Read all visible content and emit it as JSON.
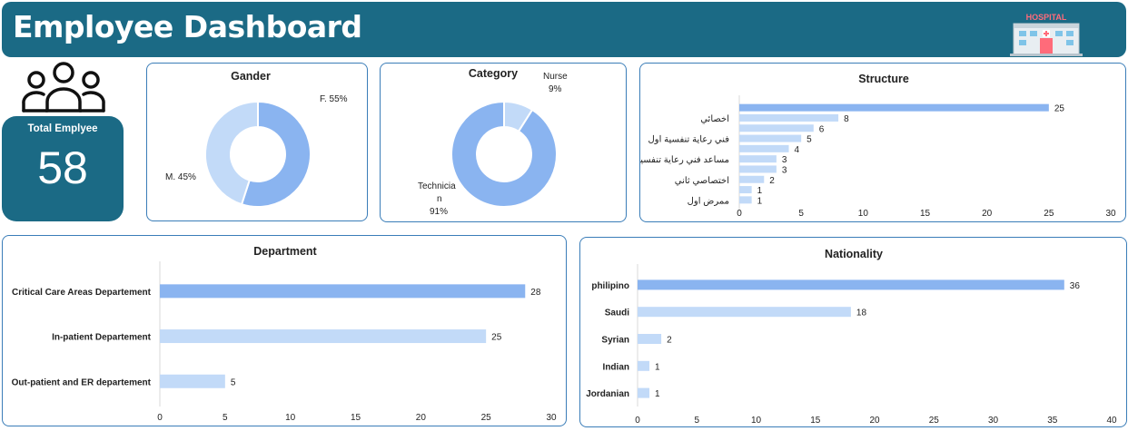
{
  "header": {
    "title": "Employee Dashboard",
    "logo_text": "HOSPITAL"
  },
  "summary": {
    "label": "Total Emplyee",
    "value": "58"
  },
  "colors": {
    "banner": "#1b6a85",
    "primary_bar": "#8ab4f0",
    "light_bar": "#c2daf8",
    "panel_border": "#3a7db8"
  },
  "chart_data": [
    {
      "type": "pie",
      "title": "Gander",
      "categories": [
        "F.",
        "M."
      ],
      "values": [
        55,
        45
      ],
      "labels": [
        "F. 55%",
        "M. 45%"
      ]
    },
    {
      "type": "pie",
      "title": "Category",
      "categories": [
        "Nurse",
        "Technician"
      ],
      "values": [
        9,
        91
      ],
      "labels": [
        [
          "Nurse",
          "9%"
        ],
        [
          "Technicia",
          "n",
          "91%"
        ]
      ]
    },
    {
      "type": "bar",
      "title": "Structure",
      "categories": [
        "",
        "اخصائي",
        "",
        "فني رعاية تنفسية اول",
        "",
        "مساعد فني رعاية تنفسية",
        "",
        "اختصاصي ثاني",
        "",
        "ممرض اول"
      ],
      "values": [
        25,
        8,
        6,
        5,
        4,
        3,
        3,
        2,
        1,
        1
      ],
      "xlim": [
        0,
        30
      ],
      "xticks": [
        0,
        5,
        10,
        15,
        20,
        25,
        30
      ]
    },
    {
      "type": "bar",
      "title": "Department",
      "categories": [
        "Critical Care Areas Departement",
        "In-patient Departement",
        "Out-patient and ER departement"
      ],
      "values": [
        28,
        25,
        5
      ],
      "xlim": [
        0,
        30
      ],
      "xticks": [
        0,
        5,
        10,
        15,
        20,
        25,
        30
      ]
    },
    {
      "type": "bar",
      "title": "Nationality",
      "categories": [
        "philipino",
        "Saudi",
        "Syrian",
        "Indian",
        "Jordanian"
      ],
      "values": [
        36,
        18,
        2,
        1,
        1
      ],
      "xlim": [
        0,
        40
      ],
      "xticks": [
        0,
        5,
        10,
        15,
        20,
        25,
        30,
        35,
        40
      ]
    }
  ]
}
